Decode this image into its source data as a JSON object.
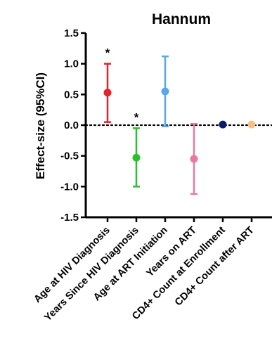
{
  "chart_data": {
    "type": "scatter",
    "title": "Hannum",
    "xlabel": "",
    "ylabel": "Effect-size (95%CI)",
    "ylim": [
      -1.5,
      1.5
    ],
    "yticks": [
      -1.5,
      -1.0,
      -0.5,
      0.0,
      0.5,
      1.0,
      1.5
    ],
    "ytick_labels": [
      "-1.5",
      "-1.0",
      "-0.5",
      "0.0",
      "0.5",
      "1.0",
      "1.5"
    ],
    "grid": false,
    "reference_line": {
      "y": 0,
      "style": "dotted",
      "color": "#000000"
    },
    "categories": [
      "Age at HIV Diagnosis",
      "Years Since HIV Diagnosis",
      "Age at ART Initiation",
      "Years on ART",
      "CD4+ Count at Enrollment",
      "CD4+ Count after ART"
    ],
    "points": [
      {
        "category": "Age at HIV Diagnosis",
        "estimate": 0.53,
        "lower": 0.05,
        "upper": 1.0,
        "color": "#e8202a",
        "significance": "*"
      },
      {
        "category": "Years Since HIV Diagnosis",
        "estimate": -0.53,
        "lower": -1.0,
        "upper": -0.05,
        "color": "#2cbf2c",
        "significance": "*"
      },
      {
        "category": "Age at ART Initiation",
        "estimate": 0.55,
        "lower": -0.02,
        "upper": 1.12,
        "color": "#5aa8e8",
        "significance": ""
      },
      {
        "category": "Years on ART",
        "estimate": -0.55,
        "lower": -1.12,
        "upper": 0.02,
        "color": "#e87aa0",
        "significance": ""
      },
      {
        "category": "CD4+ Count at Enrollment",
        "estimate": 0.01,
        "lower": 0.01,
        "upper": 0.01,
        "color": "#0b1a6e",
        "significance": ""
      },
      {
        "category": "CD4+ Count after ART",
        "estimate": 0.01,
        "lower": 0.01,
        "upper": 0.01,
        "color": "#f5bf8a",
        "significance": ""
      }
    ]
  }
}
